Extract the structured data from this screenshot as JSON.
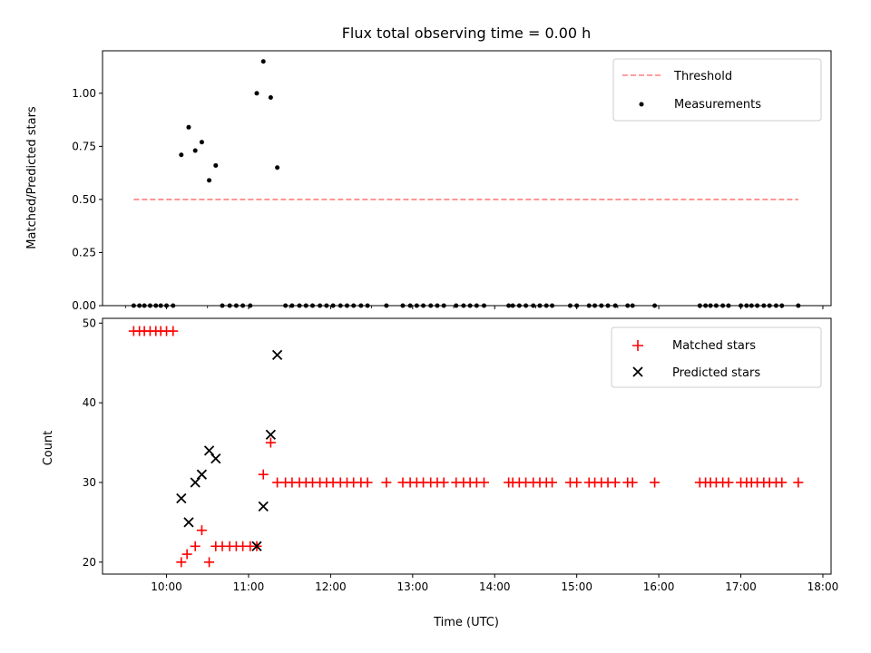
{
  "chart_data": [
    {
      "type": "scatter",
      "title": "Flux total observing time = 0.00 h",
      "xlabel": "",
      "ylabel": "Matched/Predicted stars",
      "xlim": [
        9.22,
        18.1
      ],
      "ylim": [
        0,
        1.2
      ],
      "x_unit": "hours UTC",
      "yticks": [
        0.0,
        0.25,
        0.5,
        0.75,
        1.0
      ],
      "ytick_labels": [
        "0.00",
        "0.25",
        "0.50",
        "0.75",
        "1.00"
      ],
      "legend": {
        "placement": "upper right",
        "entries": [
          "Threshold",
          "Measurements"
        ]
      },
      "series": [
        {
          "name": "Threshold",
          "kind": "dashed-line",
          "color": "#ff7f7f",
          "x": [
            9.6,
            17.7
          ],
          "y": [
            0.5,
            0.5
          ]
        },
        {
          "name": "Measurements",
          "kind": "points",
          "color": "#000000",
          "points": [
            [
              9.6,
              0
            ],
            [
              9.67,
              0
            ],
            [
              9.73,
              0
            ],
            [
              9.8,
              0
            ],
            [
              9.87,
              0
            ],
            [
              9.93,
              0
            ],
            [
              10.0,
              0
            ],
            [
              10.08,
              0
            ],
            [
              10.18,
              0.71
            ],
            [
              10.27,
              0.84
            ],
            [
              10.35,
              0.73
            ],
            [
              10.43,
              0.77
            ],
            [
              10.52,
              0.59
            ],
            [
              10.6,
              0.66
            ],
            [
              10.68,
              0
            ],
            [
              10.77,
              0
            ],
            [
              10.85,
              0
            ],
            [
              10.93,
              0
            ],
            [
              11.02,
              0
            ],
            [
              11.1,
              1.0
            ],
            [
              11.18,
              1.15
            ],
            [
              11.27,
              0.98
            ],
            [
              11.35,
              0.65
            ],
            [
              11.45,
              0
            ],
            [
              11.53,
              0
            ],
            [
              11.62,
              0
            ],
            [
              11.7,
              0
            ],
            [
              11.78,
              0
            ],
            [
              11.87,
              0
            ],
            [
              11.95,
              0
            ],
            [
              12.03,
              0
            ],
            [
              12.12,
              0
            ],
            [
              12.2,
              0
            ],
            [
              12.28,
              0
            ],
            [
              12.37,
              0
            ],
            [
              12.45,
              0
            ],
            [
              12.68,
              0
            ],
            [
              12.88,
              0
            ],
            [
              12.97,
              0
            ],
            [
              13.05,
              0
            ],
            [
              13.13,
              0
            ],
            [
              13.22,
              0
            ],
            [
              13.3,
              0
            ],
            [
              13.38,
              0
            ],
            [
              13.53,
              0
            ],
            [
              13.62,
              0
            ],
            [
              13.7,
              0
            ],
            [
              13.78,
              0
            ],
            [
              13.87,
              0
            ],
            [
              14.17,
              0
            ],
            [
              14.22,
              0
            ],
            [
              14.3,
              0
            ],
            [
              14.38,
              0
            ],
            [
              14.47,
              0
            ],
            [
              14.55,
              0
            ],
            [
              14.63,
              0
            ],
            [
              14.7,
              0
            ],
            [
              14.92,
              0
            ],
            [
              15.0,
              0
            ],
            [
              15.15,
              0
            ],
            [
              15.22,
              0
            ],
            [
              15.3,
              0
            ],
            [
              15.38,
              0
            ],
            [
              15.47,
              0
            ],
            [
              15.62,
              0
            ],
            [
              15.68,
              0
            ],
            [
              15.95,
              0
            ],
            [
              16.5,
              0
            ],
            [
              16.57,
              0
            ],
            [
              16.63,
              0
            ],
            [
              16.7,
              0
            ],
            [
              16.78,
              0
            ],
            [
              16.85,
              0
            ],
            [
              17.0,
              0
            ],
            [
              17.07,
              0
            ],
            [
              17.13,
              0
            ],
            [
              17.2,
              0
            ],
            [
              17.28,
              0
            ],
            [
              17.35,
              0
            ],
            [
              17.43,
              0
            ],
            [
              17.5,
              0
            ],
            [
              17.7,
              0
            ]
          ]
        }
      ]
    },
    {
      "type": "scatter",
      "title": "",
      "xlabel": "Time (UTC)",
      "ylabel": "Count",
      "xlim": [
        9.22,
        18.1
      ],
      "ylim": [
        18.5,
        50.6
      ],
      "x_unit": "hours UTC",
      "xticks": [
        10,
        11,
        12,
        13,
        14,
        15,
        16,
        17,
        18
      ],
      "xtick_labels": [
        "10:00",
        "11:00",
        "12:00",
        "13:00",
        "14:00",
        "15:00",
        "16:00",
        "17:00",
        "18:00"
      ],
      "yticks": [
        20,
        30,
        40,
        50
      ],
      "ytick_labels": [
        "20",
        "30",
        "40",
        "50"
      ],
      "legend": {
        "placement": "upper right",
        "entries": [
          "Matched stars",
          "Predicted stars"
        ]
      },
      "series": [
        {
          "name": "Matched stars",
          "marker": "+",
          "color": "#ff0000",
          "points": [
            [
              9.6,
              49
            ],
            [
              9.67,
              49
            ],
            [
              9.73,
              49
            ],
            [
              9.8,
              49
            ],
            [
              9.87,
              49
            ],
            [
              9.93,
              49
            ],
            [
              10.0,
              49
            ],
            [
              10.08,
              49
            ],
            [
              10.18,
              20
            ],
            [
              10.25,
              21
            ],
            [
              10.35,
              22
            ],
            [
              10.43,
              24
            ],
            [
              10.52,
              20
            ],
            [
              10.6,
              22
            ],
            [
              10.68,
              22
            ],
            [
              10.77,
              22
            ],
            [
              10.85,
              22
            ],
            [
              10.93,
              22
            ],
            [
              11.02,
              22
            ],
            [
              11.1,
              22
            ],
            [
              11.18,
              31
            ],
            [
              11.27,
              35
            ],
            [
              11.35,
              30
            ],
            [
              11.45,
              30
            ],
            [
              11.53,
              30
            ],
            [
              11.62,
              30
            ],
            [
              11.7,
              30
            ],
            [
              11.78,
              30
            ],
            [
              11.87,
              30
            ],
            [
              11.95,
              30
            ],
            [
              12.03,
              30
            ],
            [
              12.12,
              30
            ],
            [
              12.2,
              30
            ],
            [
              12.28,
              30
            ],
            [
              12.37,
              30
            ],
            [
              12.45,
              30
            ],
            [
              12.68,
              30
            ],
            [
              12.88,
              30
            ],
            [
              12.97,
              30
            ],
            [
              13.05,
              30
            ],
            [
              13.13,
              30
            ],
            [
              13.22,
              30
            ],
            [
              13.3,
              30
            ],
            [
              13.38,
              30
            ],
            [
              13.53,
              30
            ],
            [
              13.62,
              30
            ],
            [
              13.7,
              30
            ],
            [
              13.78,
              30
            ],
            [
              13.87,
              30
            ],
            [
              14.17,
              30
            ],
            [
              14.22,
              30
            ],
            [
              14.3,
              30
            ],
            [
              14.38,
              30
            ],
            [
              14.47,
              30
            ],
            [
              14.55,
              30
            ],
            [
              14.63,
              30
            ],
            [
              14.7,
              30
            ],
            [
              14.92,
              30
            ],
            [
              15.0,
              30
            ],
            [
              15.15,
              30
            ],
            [
              15.22,
              30
            ],
            [
              15.3,
              30
            ],
            [
              15.38,
              30
            ],
            [
              15.47,
              30
            ],
            [
              15.62,
              30
            ],
            [
              15.68,
              30
            ],
            [
              15.95,
              30
            ],
            [
              16.5,
              30
            ],
            [
              16.57,
              30
            ],
            [
              16.63,
              30
            ],
            [
              16.7,
              30
            ],
            [
              16.78,
              30
            ],
            [
              16.85,
              30
            ],
            [
              17.0,
              30
            ],
            [
              17.07,
              30
            ],
            [
              17.13,
              30
            ],
            [
              17.2,
              30
            ],
            [
              17.28,
              30
            ],
            [
              17.35,
              30
            ],
            [
              17.43,
              30
            ],
            [
              17.5,
              30
            ],
            [
              17.7,
              30
            ]
          ]
        },
        {
          "name": "Predicted stars",
          "marker": "x",
          "color": "#000000",
          "points": [
            [
              10.18,
              28
            ],
            [
              10.27,
              25
            ],
            [
              10.35,
              30
            ],
            [
              10.43,
              31
            ],
            [
              10.52,
              34
            ],
            [
              10.6,
              33
            ],
            [
              11.1,
              22
            ],
            [
              11.18,
              27
            ],
            [
              11.27,
              36
            ],
            [
              11.35,
              46
            ]
          ]
        }
      ]
    }
  ]
}
